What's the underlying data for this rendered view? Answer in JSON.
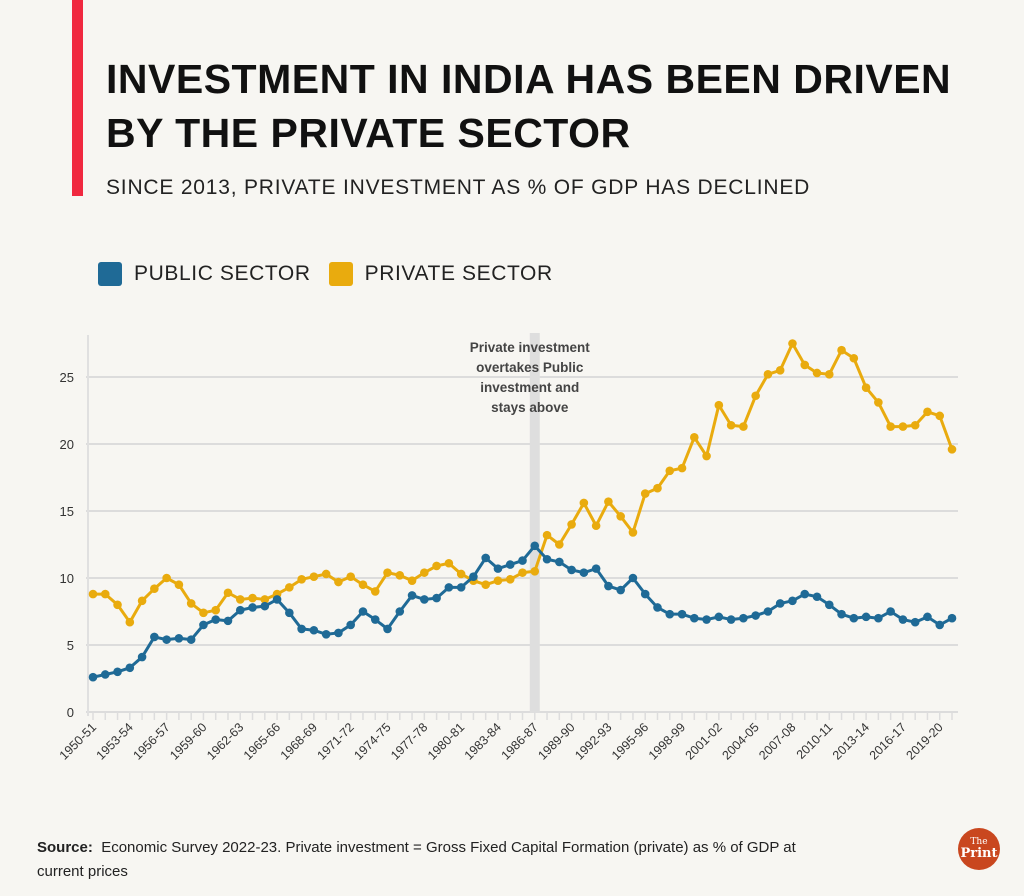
{
  "title": "Investment in India has been driven by the private sector",
  "subtitle": "SINCE 2013, PRIVATE INVESTMENT AS % OF GDP HAS DECLINED",
  "source_label": "Source:",
  "source_text": "Economic Survey 2022-23. Private investment = Gross Fixed Capital Formation (private) as % of GDP at current prices",
  "logo": {
    "line1": "The",
    "line2": "Print"
  },
  "colors": {
    "public": "#1f6a96",
    "private": "#e9ab0e",
    "accent": "#f0283f"
  },
  "chart_data": {
    "type": "line",
    "title": "",
    "xlabel": "",
    "ylabel": "",
    "ylim": [
      0,
      27.5
    ],
    "yticks": [
      0,
      5,
      10,
      15,
      20,
      25
    ],
    "grid": true,
    "legend_placement": "top-left",
    "x": [
      "1950-51",
      "1951-52",
      "1952-53",
      "1953-54",
      "1954-55",
      "1955-56",
      "1956-57",
      "1957-58",
      "1958-59",
      "1959-60",
      "1960-61",
      "1961-62",
      "1962-63",
      "1963-64",
      "1964-65",
      "1965-66",
      "1966-67",
      "1967-68",
      "1968-69",
      "1969-70",
      "1970-71",
      "1971-72",
      "1972-73",
      "1973-74",
      "1974-75",
      "1975-76",
      "1976-77",
      "1977-78",
      "1978-79",
      "1979-80",
      "1980-81",
      "1981-82",
      "1982-83",
      "1983-84",
      "1984-85",
      "1985-86",
      "1986-87",
      "1987-88",
      "1988-89",
      "1989-90",
      "1990-91",
      "1991-92",
      "1992-93",
      "1993-94",
      "1994-95",
      "1995-96",
      "1996-97",
      "1997-98",
      "1998-99",
      "1999-00",
      "2000-01",
      "2001-02",
      "2002-03",
      "2003-04",
      "2004-05",
      "2005-06",
      "2006-07",
      "2007-08",
      "2008-09",
      "2009-10",
      "2010-11",
      "2011-12",
      "2012-13",
      "2013-14",
      "2014-15",
      "2015-16",
      "2016-17",
      "2017-18",
      "2018-19",
      "2019-20",
      "2020-21"
    ],
    "xtick_labels": [
      "1950-51",
      "1953-54",
      "1956-57",
      "1959-60",
      "1962-63",
      "1965-66",
      "1968-69",
      "1971-72",
      "1974-75",
      "1977-78",
      "1980-81",
      "1983-84",
      "1986-87",
      "1989-90",
      "1992-93",
      "1995-96",
      "1998-99",
      "2001-02",
      "2004-05",
      "2007-08",
      "2010-11",
      "2013-14",
      "2016-17",
      "2019-20"
    ],
    "series": [
      {
        "name": "PUBLIC SECTOR",
        "color": "#1f6a96",
        "values": [
          2.6,
          2.8,
          3.0,
          3.3,
          4.1,
          5.6,
          5.4,
          5.5,
          5.4,
          6.5,
          6.9,
          6.8,
          7.6,
          7.8,
          7.9,
          8.4,
          7.4,
          6.2,
          6.1,
          5.8,
          5.9,
          6.5,
          7.5,
          6.9,
          6.2,
          7.5,
          8.7,
          8.4,
          8.5,
          9.3,
          9.3,
          10.1,
          11.5,
          10.7,
          11.0,
          11.3,
          12.4,
          11.4,
          11.2,
          10.6,
          10.4,
          10.7,
          9.4,
          9.1,
          10.0,
          8.8,
          7.8,
          7.3,
          7.3,
          7.0,
          6.9,
          7.1,
          6.9,
          7.0,
          7.2,
          7.5,
          8.1,
          8.3,
          8.8,
          8.6,
          8.0,
          7.3,
          7.0,
          7.1,
          7.0,
          7.5,
          6.9,
          6.7,
          7.1,
          6.5,
          7.0
        ]
      },
      {
        "name": "PRIVATE SECTOR",
        "color": "#e9ab0e",
        "values": [
          8.8,
          8.8,
          8.0,
          6.7,
          8.3,
          9.2,
          10.0,
          9.5,
          8.1,
          7.4,
          7.6,
          8.9,
          8.4,
          8.5,
          8.4,
          8.8,
          9.3,
          9.9,
          10.1,
          10.3,
          9.7,
          10.1,
          9.5,
          9.0,
          10.4,
          10.2,
          9.8,
          10.4,
          10.9,
          11.1,
          10.3,
          9.8,
          9.5,
          9.8,
          9.9,
          10.4,
          10.5,
          13.2,
          12.5,
          14.0,
          15.6,
          13.9,
          15.7,
          14.6,
          13.4,
          16.3,
          16.7,
          18.0,
          18.2,
          20.5,
          19.1,
          22.9,
          21.4,
          21.3,
          23.6,
          25.2,
          25.5,
          27.5,
          25.9,
          25.3,
          25.2,
          27.0,
          26.4,
          24.2,
          23.1,
          21.3,
          21.3,
          21.4,
          22.4,
          22.1,
          19.6
        ]
      }
    ],
    "annotation": {
      "at": "1986-87",
      "lines": [
        "Private investment",
        "overtakes Public",
        "investment and",
        "stays above"
      ]
    }
  }
}
